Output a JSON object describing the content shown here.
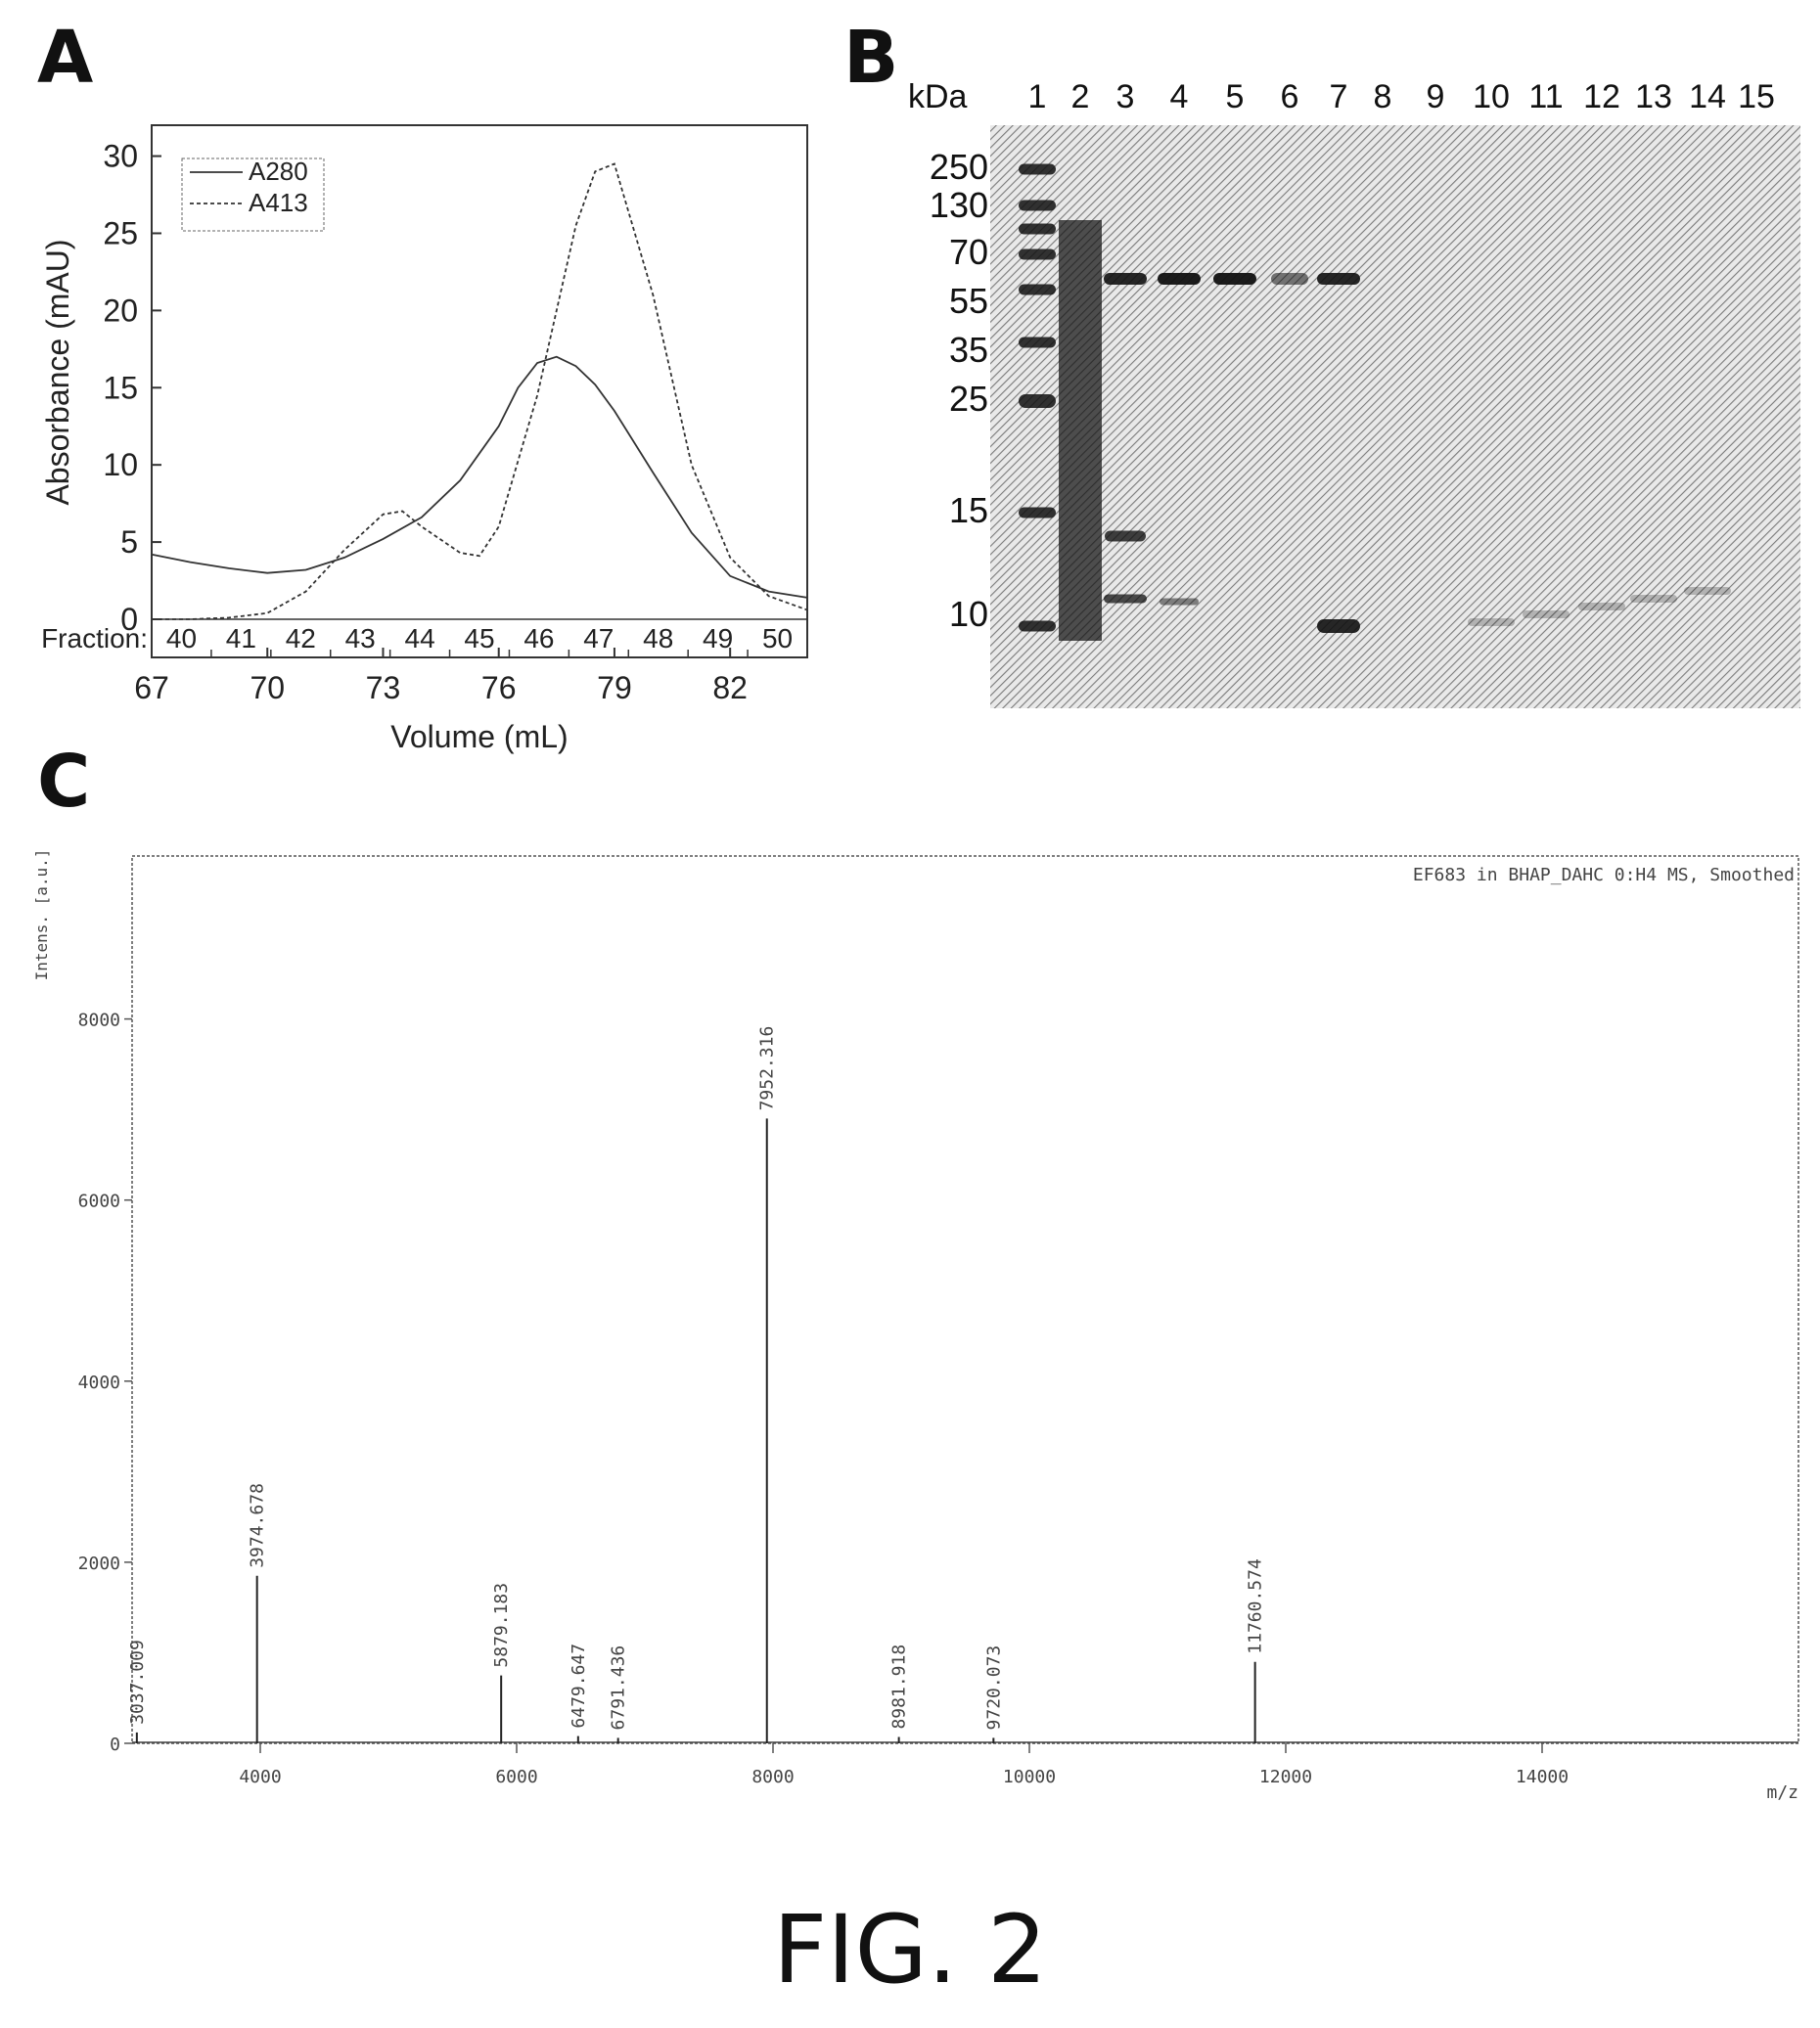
{
  "panels": {
    "a": {
      "letter": "A"
    },
    "b": {
      "letter": "B"
    },
    "c": {
      "letter": "C"
    }
  },
  "figure_caption": "FIG. 2",
  "chart_data": [
    {
      "panel": "A",
      "type": "line",
      "xlabel": "Volume (mL)",
      "ylabel": "Absorbance (mAU)",
      "xlim": [
        67,
        84
      ],
      "ylim": [
        0,
        32
      ],
      "x_ticks": [
        67,
        70,
        73,
        76,
        79,
        82
      ],
      "y_ticks": [
        0,
        5,
        10,
        15,
        20,
        25,
        30
      ],
      "fraction_label": "Fraction:",
      "fractions": [
        "40",
        "41",
        "42",
        "43",
        "44",
        "45",
        "46",
        "47",
        "48",
        "49",
        "50"
      ],
      "legend_position": "top-left",
      "series": [
        {
          "name": "A280",
          "x": [
            67,
            68,
            69,
            70,
            71,
            72,
            73,
            74,
            75,
            76,
            76.5,
            77,
            77.5,
            78,
            78.5,
            79,
            80,
            81,
            82,
            83,
            84
          ],
          "y": [
            4.2,
            3.7,
            3.3,
            3.0,
            3.2,
            4.0,
            5.2,
            6.6,
            9.0,
            12.5,
            15.0,
            16.6,
            17.0,
            16.4,
            15.2,
            13.5,
            9.5,
            5.6,
            2.8,
            1.8,
            1.4
          ]
        },
        {
          "name": "A413",
          "x": [
            67,
            68,
            69,
            70,
            71,
            72,
            73,
            73.5,
            74,
            75,
            75.5,
            76,
            77,
            78,
            78.5,
            79,
            80,
            81,
            82,
            83,
            84
          ],
          "y": [
            0,
            0,
            0.1,
            0.4,
            1.8,
            4.5,
            6.8,
            7.0,
            6.0,
            4.3,
            4.1,
            6.0,
            14.5,
            25.5,
            29.0,
            29.5,
            21.0,
            10.0,
            4.0,
            1.5,
            0.6
          ]
        }
      ]
    },
    {
      "panel": "B",
      "type": "table",
      "unit_label": "kDa",
      "lanes": [
        "1",
        "2",
        "3",
        "4",
        "5",
        "6",
        "7",
        "8",
        "9",
        "10",
        "11",
        "12",
        "13",
        "14",
        "15"
      ],
      "marker_kda": [
        "250",
        "130",
        "70",
        "55",
        "35",
        "25",
        "15",
        "10"
      ]
    },
    {
      "panel": "C",
      "type": "bar",
      "title": "EF683 in BHAP_DAHC 0:H4 MS, Smoothed",
      "xlabel": "m/z",
      "ylabel": "Intens. [a.u.]",
      "xlim": [
        3000,
        16000
      ],
      "ylim": [
        0,
        9800
      ],
      "x_ticks": [
        4000,
        6000,
        8000,
        10000,
        12000,
        14000
      ],
      "y_ticks": [
        0,
        2000,
        4000,
        6000,
        8000
      ],
      "peaks": [
        {
          "mz": 3037.009,
          "label": "3037.009",
          "intensity": 120
        },
        {
          "mz": 3974.678,
          "label": "3974.678",
          "intensity": 1850
        },
        {
          "mz": 5879.183,
          "label": "5879.183",
          "intensity": 750
        },
        {
          "mz": 6479.647,
          "label": "6479.647",
          "intensity": 80
        },
        {
          "mz": 6791.436,
          "label": "6791.436",
          "intensity": 60
        },
        {
          "mz": 7952.316,
          "label": "7952.316",
          "intensity": 6900
        },
        {
          "mz": 8981.918,
          "label": "8981.918",
          "intensity": 70
        },
        {
          "mz": 9720.073,
          "label": "9720.073",
          "intensity": 60
        },
        {
          "mz": 11760.574,
          "label": "11760.574",
          "intensity": 900
        }
      ]
    }
  ]
}
